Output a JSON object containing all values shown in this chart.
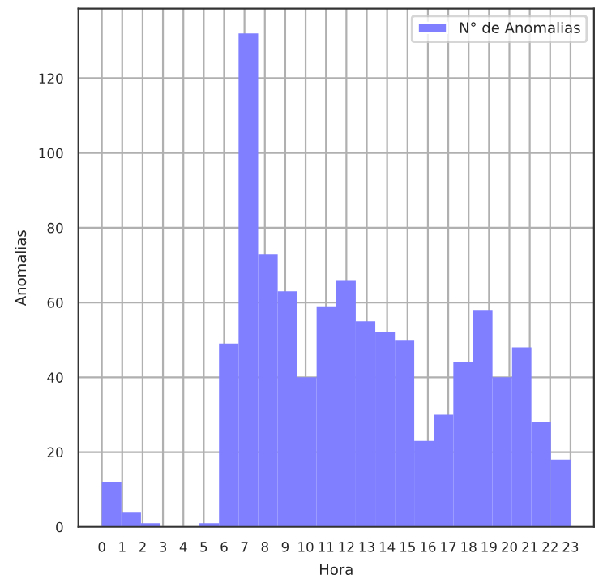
{
  "chart_data": {
    "type": "histogram",
    "xlabel": "Hora",
    "ylabel": "Anomalias",
    "bins": [
      0,
      0.96,
      1.92,
      2.88,
      3.83,
      4.79,
      5.75,
      6.71,
      7.67,
      8.63,
      9.58,
      10.54,
      11.5,
      12.46,
      13.42,
      14.38,
      15.33,
      16.29,
      17.25,
      18.21,
      19.17,
      20.13,
      21.08,
      22.04,
      23
    ],
    "series": [
      {
        "name": "N° de Anomalias",
        "color": "#7f7fff",
        "values": [
          12,
          4,
          1,
          0,
          0,
          1,
          49,
          132,
          73,
          63,
          40,
          59,
          66,
          55,
          52,
          50,
          23,
          30,
          44,
          58,
          40,
          48,
          28,
          18
        ]
      }
    ],
    "xlim": [
      -1.15,
      24.15
    ],
    "xticks": [
      0,
      1,
      2,
      3,
      4,
      5,
      6,
      7,
      8,
      9,
      10,
      11,
      12,
      13,
      14,
      15,
      16,
      17,
      18,
      19,
      20,
      21,
      22,
      23
    ],
    "ylim": [
      0,
      138.6
    ],
    "yticks": [
      0,
      20,
      40,
      60,
      80,
      100,
      120
    ],
    "grid": true,
    "legend": "top right"
  }
}
